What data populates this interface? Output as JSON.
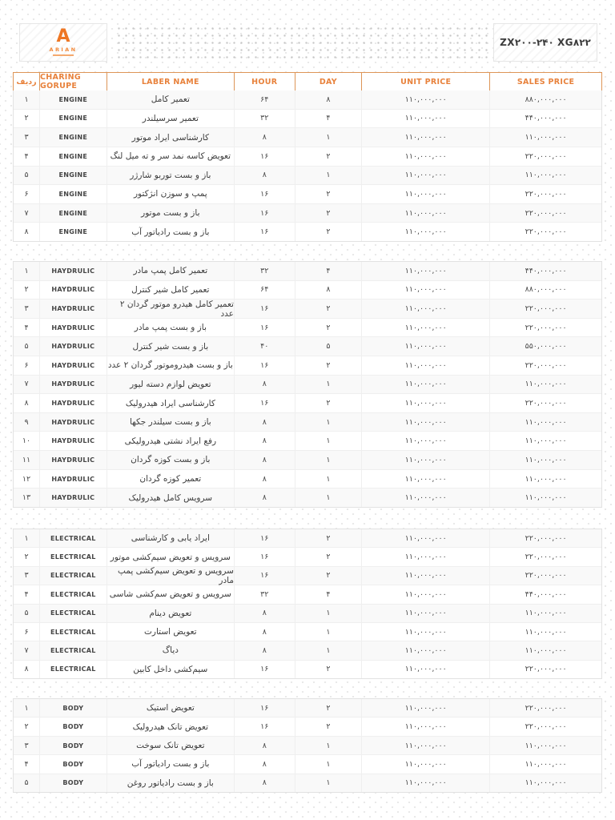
{
  "header": {
    "logo": {
      "letter": "A",
      "name": "ARIAN"
    },
    "model_title": "ZX۲۰۰-۲۴۰ XG۸۲۲"
  },
  "colors": {
    "accent_orange": "#E8823C",
    "accent_orange_border": "#DD9557",
    "logo_orange": "#EE7623",
    "table_border": "#E2E2E2",
    "row_stripe": "#F9F9F9",
    "text_dark": "#3D3D3D"
  },
  "table": {
    "columns": [
      {
        "key": "radif",
        "label": "ردیف"
      },
      {
        "key": "group",
        "label": "CHARING GORUPE"
      },
      {
        "key": "labor",
        "label": "LABER NAME"
      },
      {
        "key": "hour",
        "label": "HOUR"
      },
      {
        "key": "day",
        "label": "DAY"
      },
      {
        "key": "unit_price",
        "label": "UNIT PRICE"
      },
      {
        "key": "sales_price",
        "label": "SALES PRICE"
      }
    ],
    "sections": [
      {
        "name": "ENGINE",
        "rows": [
          [
            "۱",
            "ENGINE",
            "تعمیر کامل",
            "۶۴",
            "۸",
            "۱۱۰,۰۰۰,۰۰۰",
            "۸۸۰,۰۰۰,۰۰۰"
          ],
          [
            "۲",
            "ENGINE",
            "تعمیر سرسیلندر",
            "۳۲",
            "۴",
            "۱۱۰,۰۰۰,۰۰۰",
            "۴۴۰,۰۰۰,۰۰۰"
          ],
          [
            "۳",
            "ENGINE",
            "کارشناسی ایراد موتور",
            "۸",
            "۱",
            "۱۱۰,۰۰۰,۰۰۰",
            "۱۱۰,۰۰۰,۰۰۰"
          ],
          [
            "۴",
            "ENGINE",
            "تعویض کاسه نمد سر و ته میل لنگ",
            "۱۶",
            "۲",
            "۱۱۰,۰۰۰,۰۰۰",
            "۲۲۰,۰۰۰,۰۰۰"
          ],
          [
            "۵",
            "ENGINE",
            "باز و بست توربو شارژر",
            "۸",
            "۱",
            "۱۱۰,۰۰۰,۰۰۰",
            "۱۱۰,۰۰۰,۰۰۰"
          ],
          [
            "۶",
            "ENGINE",
            "پمپ و سوزن انژکتور",
            "۱۶",
            "۲",
            "۱۱۰,۰۰۰,۰۰۰",
            "۲۲۰,۰۰۰,۰۰۰"
          ],
          [
            "۷",
            "ENGINE",
            "باز و بست موتور",
            "۱۶",
            "۲",
            "۱۱۰,۰۰۰,۰۰۰",
            "۲۲۰,۰۰۰,۰۰۰"
          ],
          [
            "۸",
            "ENGINE",
            "باز و بست رادیاتور آب",
            "۱۶",
            "۲",
            "۱۱۰,۰۰۰,۰۰۰",
            "۲۲۰,۰۰۰,۰۰۰"
          ]
        ]
      },
      {
        "name": "HAYDRULIC",
        "rows": [
          [
            "۱",
            "HAYDRULIC",
            "تعمیر کامل پمپ مادر",
            "۳۲",
            "۴",
            "۱۱۰,۰۰۰,۰۰۰",
            "۴۴۰,۰۰۰,۰۰۰"
          ],
          [
            "۲",
            "HAYDRULIC",
            "تعمیر کامل شیر کنترل",
            "۶۴",
            "۸",
            "۱۱۰,۰۰۰,۰۰۰",
            "۸۸۰,۰۰۰,۰۰۰"
          ],
          [
            "۳",
            "HAYDRULIC",
            "تعمیر کامل هیدرو موتور گردان ۲ عدد",
            "۱۶",
            "۲",
            "۱۱۰,۰۰۰,۰۰۰",
            "۲۲۰,۰۰۰,۰۰۰"
          ],
          [
            "۴",
            "HAYDRULIC",
            "باز و بست پمپ مادر",
            "۱۶",
            "۲",
            "۱۱۰,۰۰۰,۰۰۰",
            "۲۲۰,۰۰۰,۰۰۰"
          ],
          [
            "۵",
            "HAYDRULIC",
            "باز و بست شیر کنترل",
            "۴۰",
            "۵",
            "۱۱۰,۰۰۰,۰۰۰",
            "۵۵۰,۰۰۰,۰۰۰"
          ],
          [
            "۶",
            "HAYDRULIC",
            "باز و بست هیدروموتور گردان ۲ عدد",
            "۱۶",
            "۲",
            "۱۱۰,۰۰۰,۰۰۰",
            "۲۲۰,۰۰۰,۰۰۰"
          ],
          [
            "۷",
            "HAYDRULIC",
            "تعویض لوازم دسته لیور",
            "۸",
            "۱",
            "۱۱۰,۰۰۰,۰۰۰",
            "۱۱۰,۰۰۰,۰۰۰"
          ],
          [
            "۸",
            "HAYDRULIC",
            "کارشناسی ایراد هیدرولیک",
            "۱۶",
            "۲",
            "۱۱۰,۰۰۰,۰۰۰",
            "۲۲۰,۰۰۰,۰۰۰"
          ],
          [
            "۹",
            "HAYDRULIC",
            "باز و بست سیلندر جکها",
            "۸",
            "۱",
            "۱۱۰,۰۰۰,۰۰۰",
            "۱۱۰,۰۰۰,۰۰۰"
          ],
          [
            "۱۰",
            "HAYDRULIC",
            "رفع ایراد نشتی هیدرولیکی",
            "۸",
            "۱",
            "۱۱۰,۰۰۰,۰۰۰",
            "۱۱۰,۰۰۰,۰۰۰"
          ],
          [
            "۱۱",
            "HAYDRULIC",
            "باز و بست کوزه گردان",
            "۸",
            "۱",
            "۱۱۰,۰۰۰,۰۰۰",
            "۱۱۰,۰۰۰,۰۰۰"
          ],
          [
            "۱۲",
            "HAYDRULIC",
            "تعمیر کوزه گردان",
            "۸",
            "۱",
            "۱۱۰,۰۰۰,۰۰۰",
            "۱۱۰,۰۰۰,۰۰۰"
          ],
          [
            "۱۳",
            "HAYDRULIC",
            "سرویس کامل هیدرولیک",
            "۸",
            "۱",
            "۱۱۰,۰۰۰,۰۰۰",
            "۱۱۰,۰۰۰,۰۰۰"
          ]
        ]
      },
      {
        "name": "ELECTRICAL",
        "rows": [
          [
            "۱",
            "ELECTRICAL",
            "ایراد یابی و کارشناسی",
            "۱۶",
            "۲",
            "۱۱۰,۰۰۰,۰۰۰",
            "۲۲۰,۰۰۰,۰۰۰"
          ],
          [
            "۲",
            "ELECTRICAL",
            "سرویس و تعویض سیم‌کشی موتور",
            "۱۶",
            "۲",
            "۱۱۰,۰۰۰,۰۰۰",
            "۲۲۰,۰۰۰,۰۰۰"
          ],
          [
            "۳",
            "ELECTRICAL",
            "سرویس و تعویض سیم‌کشی پمپ مادر",
            "۱۶",
            "۲",
            "۱۱۰,۰۰۰,۰۰۰",
            "۲۲۰,۰۰۰,۰۰۰"
          ],
          [
            "۴",
            "ELECTRICAL",
            "سرویس و تعویض سم‌کشی شاسی",
            "۳۲",
            "۴",
            "۱۱۰,۰۰۰,۰۰۰",
            "۴۴۰,۰۰۰,۰۰۰"
          ],
          [
            "۵",
            "ELECTRICAL",
            "تعویض دینام",
            "۸",
            "۱",
            "۱۱۰,۰۰۰,۰۰۰",
            "۱۱۰,۰۰۰,۰۰۰"
          ],
          [
            "۶",
            "ELECTRICAL",
            "تعویض استارت",
            "۸",
            "۱",
            "۱۱۰,۰۰۰,۰۰۰",
            "۱۱۰,۰۰۰,۰۰۰"
          ],
          [
            "۷",
            "ELECTRICAL",
            "دیاگ",
            "۸",
            "۱",
            "۱۱۰,۰۰۰,۰۰۰",
            "۱۱۰,۰۰۰,۰۰۰"
          ],
          [
            "۸",
            "ELECTRICAL",
            "سیم‌کشی داخل کابین",
            "۱۶",
            "۲",
            "۱۱۰,۰۰۰,۰۰۰",
            "۲۲۰,۰۰۰,۰۰۰"
          ]
        ]
      },
      {
        "name": "BODY",
        "rows": [
          [
            "۱",
            "BODY",
            "تعویض استیک",
            "۱۶",
            "۲",
            "۱۱۰,۰۰۰,۰۰۰",
            "۲۲۰,۰۰۰,۰۰۰"
          ],
          [
            "۲",
            "BODY",
            "تعویض تانک هیدرولیک",
            "۱۶",
            "۲",
            "۱۱۰,۰۰۰,۰۰۰",
            "۲۲۰,۰۰۰,۰۰۰"
          ],
          [
            "۳",
            "BODY",
            "تعویض تانک سوخت",
            "۸",
            "۱",
            "۱۱۰,۰۰۰,۰۰۰",
            "۱۱۰,۰۰۰,۰۰۰"
          ],
          [
            "۴",
            "BODY",
            "باز و بست رادیاتور آب",
            "۸",
            "۱",
            "۱۱۰,۰۰۰,۰۰۰",
            "۱۱۰,۰۰۰,۰۰۰"
          ],
          [
            "۵",
            "BODY",
            "باز و بست رادیاتور روغن",
            "۸",
            "۱",
            "۱۱۰,۰۰۰,۰۰۰",
            "۱۱۰,۰۰۰,۰۰۰"
          ]
        ]
      }
    ]
  }
}
